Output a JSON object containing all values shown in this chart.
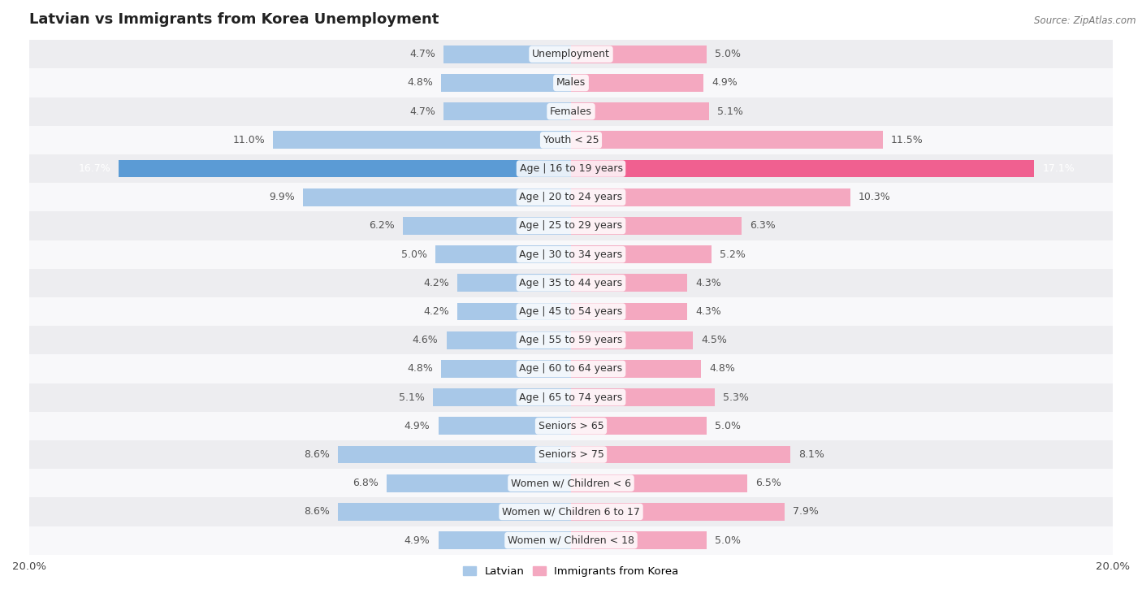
{
  "title": "Latvian vs Immigrants from Korea Unemployment",
  "source": "Source: ZipAtlas.com",
  "categories": [
    "Unemployment",
    "Males",
    "Females",
    "Youth < 25",
    "Age | 16 to 19 years",
    "Age | 20 to 24 years",
    "Age | 25 to 29 years",
    "Age | 30 to 34 years",
    "Age | 35 to 44 years",
    "Age | 45 to 54 years",
    "Age | 55 to 59 years",
    "Age | 60 to 64 years",
    "Age | 65 to 74 years",
    "Seniors > 65",
    "Seniors > 75",
    "Women w/ Children < 6",
    "Women w/ Children 6 to 17",
    "Women w/ Children < 18"
  ],
  "latvian": [
    4.7,
    4.8,
    4.7,
    11.0,
    16.7,
    9.9,
    6.2,
    5.0,
    4.2,
    4.2,
    4.6,
    4.8,
    5.1,
    4.9,
    8.6,
    6.8,
    8.6,
    4.9
  ],
  "korea": [
    5.0,
    4.9,
    5.1,
    11.5,
    17.1,
    10.3,
    6.3,
    5.2,
    4.3,
    4.3,
    4.5,
    4.8,
    5.3,
    5.0,
    8.1,
    6.5,
    7.9,
    5.0
  ],
  "latvian_color": "#a8c8e8",
  "korea_color": "#f4a8c0",
  "latvian_color_highlight": "#5b9bd5",
  "korea_color_highlight": "#f06090",
  "highlight_row": "Age | 16 to 19 years",
  "bg_odd": "#ededf0",
  "bg_even": "#f8f8fa",
  "xlim": 20.0,
  "bar_height": 0.62,
  "label_fontsize": 9,
  "title_fontsize": 13,
  "legend_latvian": "Latvian",
  "legend_korea": "Immigrants from Korea"
}
